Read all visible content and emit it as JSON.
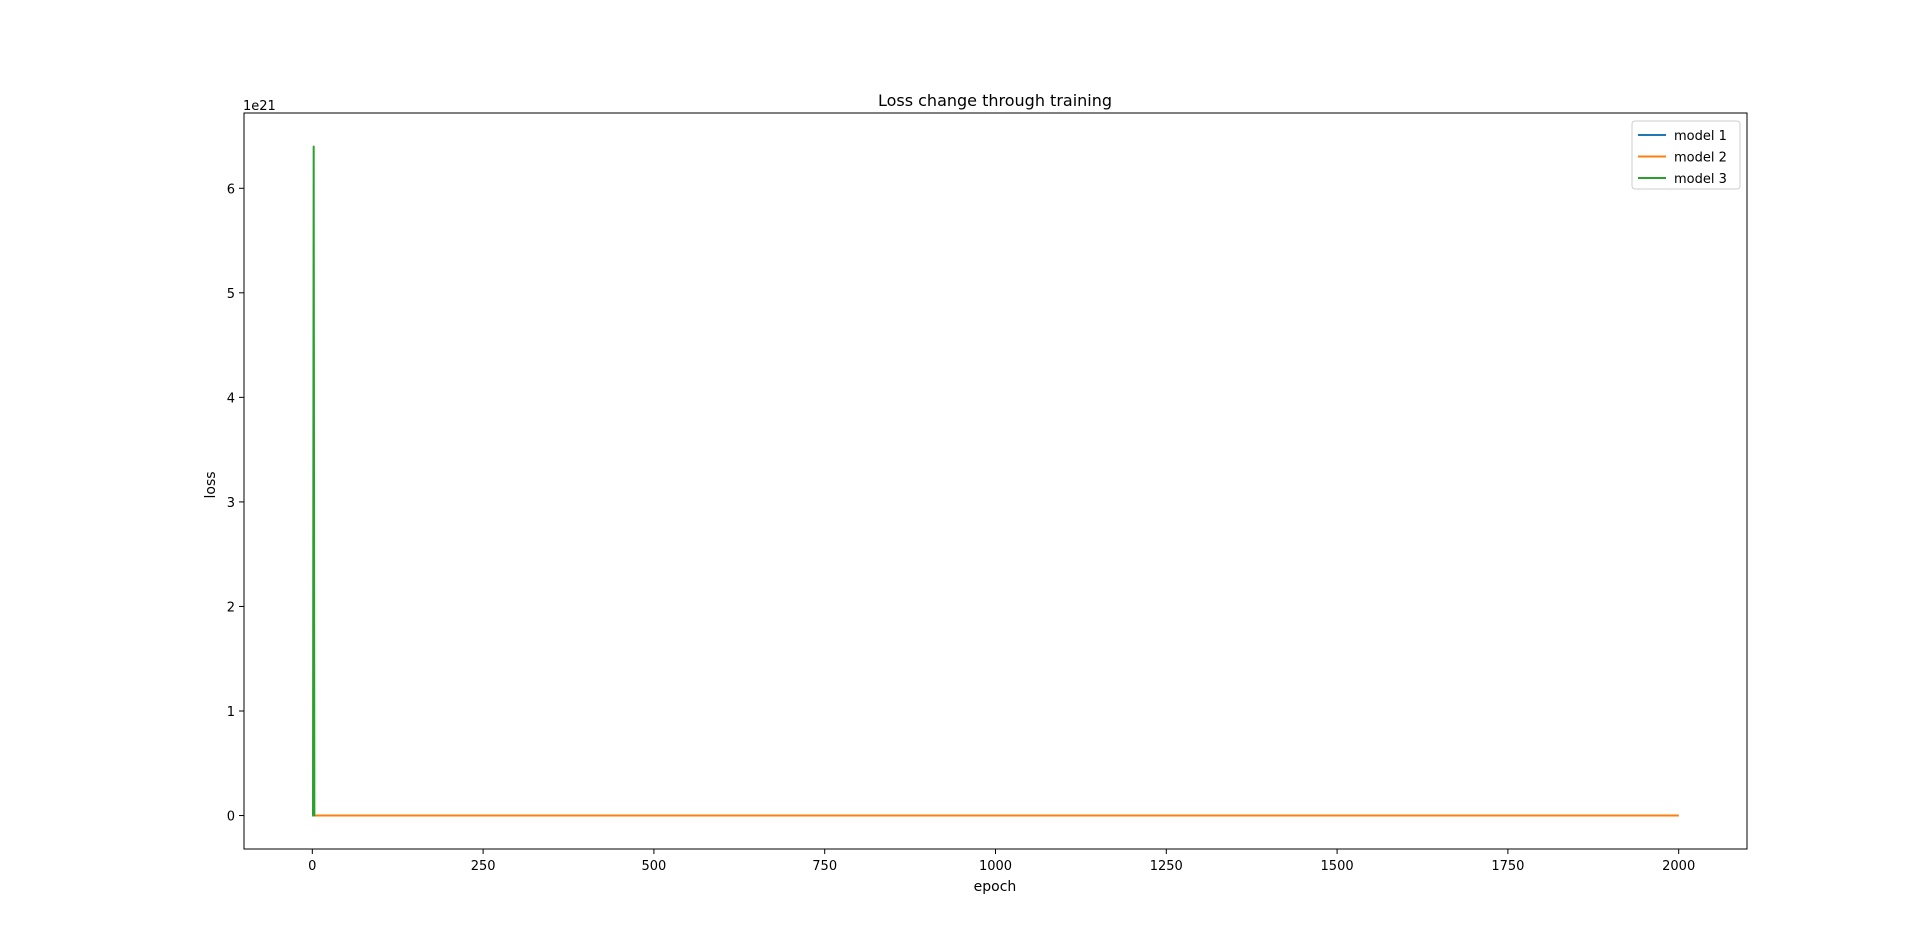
{
  "chart_data": {
    "type": "line",
    "title": "Loss change through training",
    "xlabel": "epoch",
    "ylabel": "loss",
    "y_offset_label": "1e21",
    "y_scale_factor": 1e+21,
    "xlim": [
      -100,
      2100
    ],
    "ylim": [
      -3.2e+20,
      6.72e+21
    ],
    "x_ticks": [
      0,
      250,
      500,
      750,
      1000,
      1250,
      1500,
      1750,
      2000
    ],
    "x_tick_labels": [
      "0",
      "250",
      "500",
      "750",
      "1000",
      "1250",
      "1500",
      "1750",
      "2000"
    ],
    "y_ticks": [
      0,
      1e+21,
      2e+21,
      3e+21,
      4e+21,
      5e+21,
      6e+21
    ],
    "y_tick_labels": [
      "0",
      "1",
      "2",
      "3",
      "4",
      "5",
      "6"
    ],
    "grid": false,
    "legend_position": "top-right",
    "series": [
      {
        "name": "model 1",
        "color": "#1f77b4",
        "x": [
          0,
          2000
        ],
        "y": [
          0,
          0
        ]
      },
      {
        "name": "model 2",
        "color": "#ff7f0e",
        "x": [
          0,
          2000
        ],
        "y": [
          0,
          0
        ]
      },
      {
        "name": "model 3",
        "color": "#2ca02c",
        "x": [
          0,
          1,
          2,
          3,
          4
        ],
        "y": [
          0,
          0,
          6.4e+21,
          0,
          0
        ]
      }
    ]
  }
}
